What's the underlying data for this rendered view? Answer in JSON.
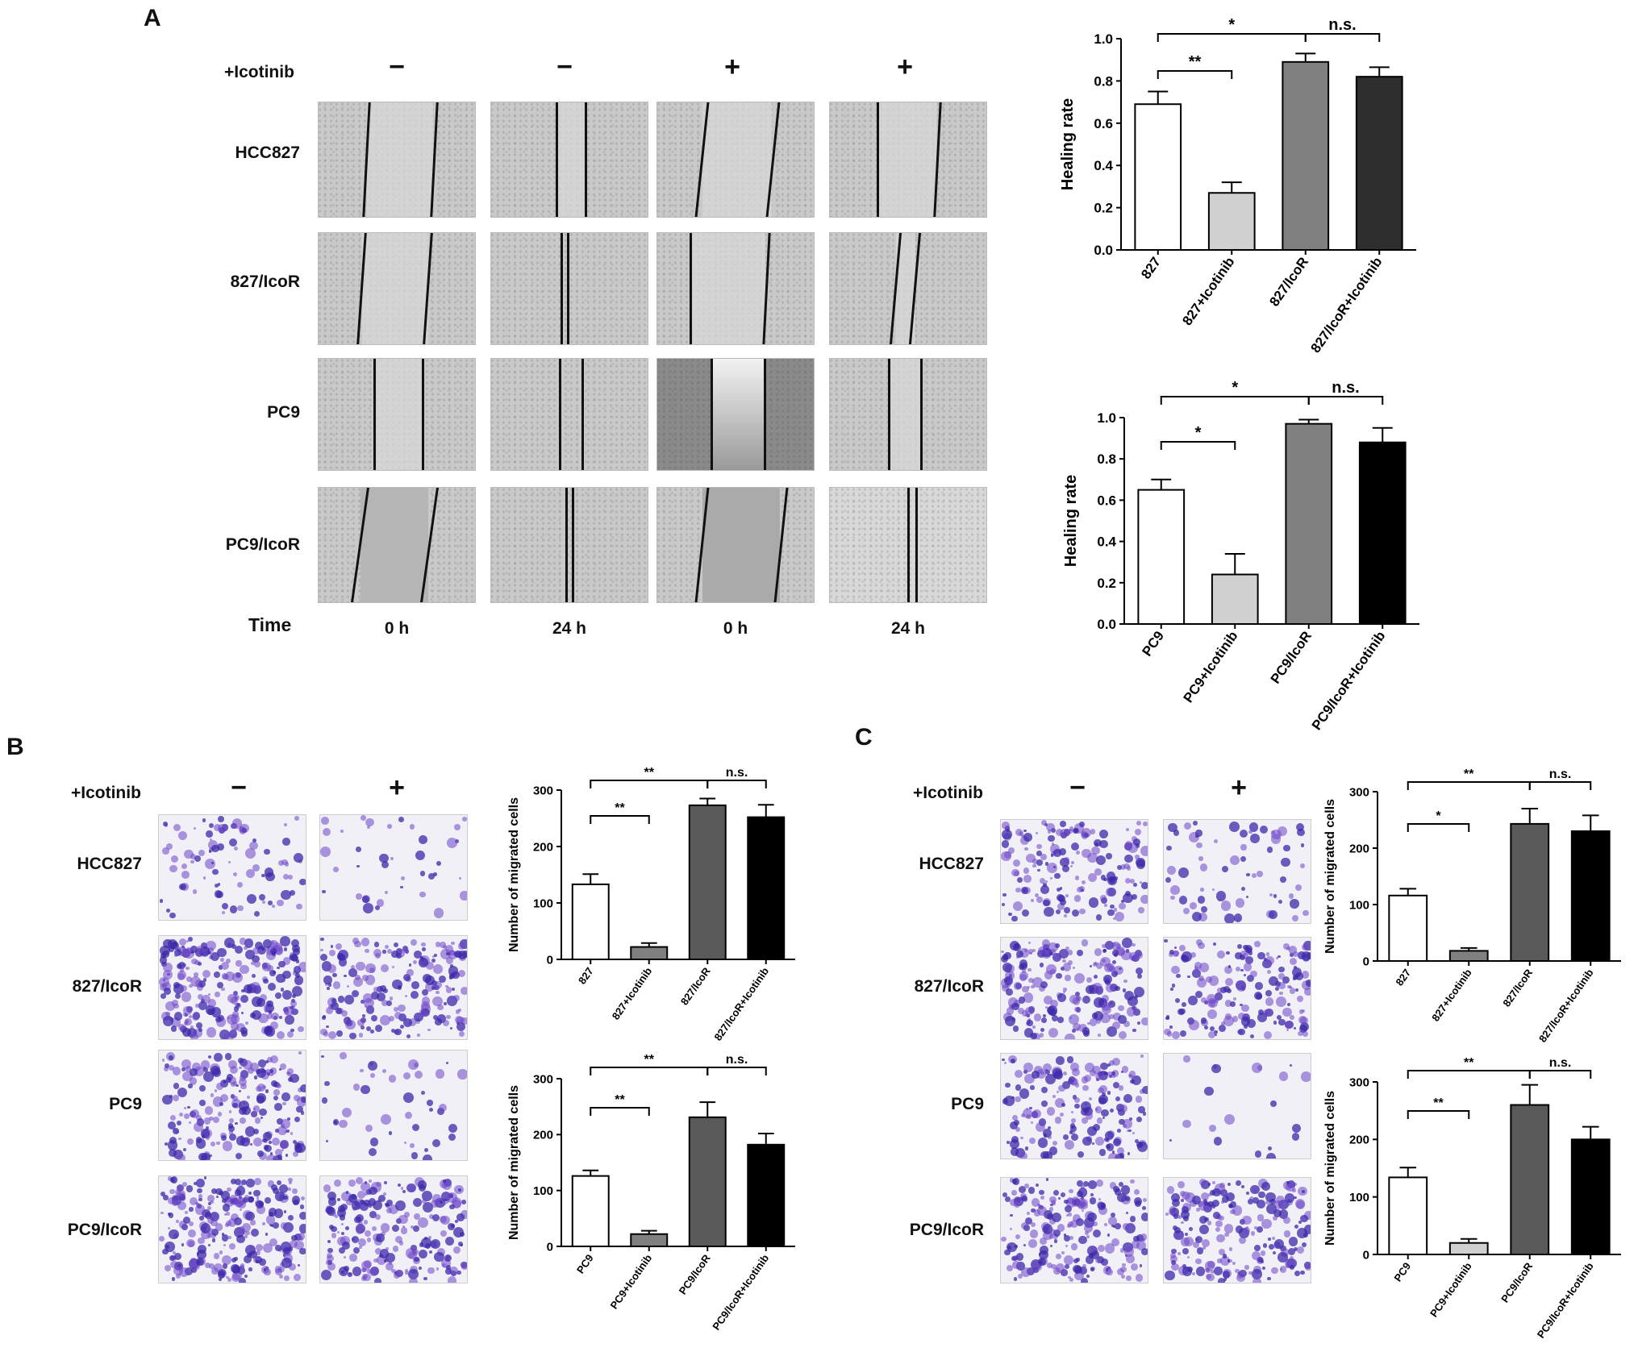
{
  "panelA": {
    "letter": "A",
    "treatment_label": "+Icotinib",
    "treatment_signs": [
      "−",
      "−",
      "+",
      "+"
    ],
    "rows": [
      "HCC827",
      "827/IcoR",
      "PC9",
      "PC9/IcoR"
    ],
    "time_label": "Time",
    "times": [
      "0 h",
      "24 h",
      "0 h",
      "24 h"
    ]
  },
  "panelB": {
    "letter": "B",
    "treatment_label": "+Icotinib",
    "treatment_signs": [
      "−",
      "+"
    ],
    "rows": [
      "HCC827",
      "827/IcoR",
      "PC9",
      "PC9/IcoR"
    ]
  },
  "panelC": {
    "letter": "C",
    "treatment_label": "+Icotinib",
    "treatment_signs": [
      "−",
      "+"
    ],
    "rows": [
      "HCC827",
      "827/IcoR",
      "PC9",
      "PC9/IcoR"
    ]
  },
  "chart_data": [
    {
      "id": "A1",
      "type": "bar",
      "ylabel": "Healing rate",
      "categories": [
        "827",
        "827+Icotinib",
        "827/IcoR",
        "827/IcoR+Icotinib"
      ],
      "values": [
        0.69,
        0.27,
        0.89,
        0.82
      ],
      "errors": [
        0.06,
        0.05,
        0.04,
        0.045
      ],
      "ylim": [
        0,
        1.0
      ],
      "yticks": [
        "0.0",
        "0.2",
        "0.4",
        "0.6",
        "0.8",
        "1.0"
      ],
      "colors": [
        "#ffffff",
        "#d0d0d0",
        "#808080",
        "#2e2e2e"
      ],
      "annotations": [
        {
          "from": 0,
          "to": 1,
          "text": "**"
        },
        {
          "from": 0,
          "to": 2,
          "text": "*"
        },
        {
          "from": 2,
          "to": 3,
          "text": "n.s."
        }
      ]
    },
    {
      "id": "A2",
      "type": "bar",
      "ylabel": "Healing rate",
      "categories": [
        "PC9",
        "PC9+Icotinib",
        "PC9/IcoR",
        "PC9/IcoR+Icotinib"
      ],
      "values": [
        0.65,
        0.24,
        0.97,
        0.88
      ],
      "errors": [
        0.05,
        0.1,
        0.02,
        0.07
      ],
      "ylim": [
        0,
        1.0
      ],
      "yticks": [
        "0.0",
        "0.2",
        "0.4",
        "0.6",
        "0.8",
        "1.0"
      ],
      "colors": [
        "#ffffff",
        "#d0d0d0",
        "#808080",
        "#000000"
      ],
      "annotations": [
        {
          "from": 0,
          "to": 1,
          "text": "*"
        },
        {
          "from": 0,
          "to": 2,
          "text": "*"
        },
        {
          "from": 2,
          "to": 3,
          "text": "n.s."
        }
      ]
    },
    {
      "id": "B1",
      "type": "bar",
      "ylabel": "Number of migrated cells",
      "categories": [
        "827",
        "827+Icotinib",
        "827/IcoR",
        "827/IcoR+Icotinib"
      ],
      "values": [
        133,
        22,
        273,
        252
      ],
      "errors": [
        18,
        7,
        12,
        22
      ],
      "ylim": [
        0,
        300
      ],
      "yticks": [
        "0",
        "100",
        "200",
        "300"
      ],
      "colors": [
        "#ffffff",
        "#808080",
        "#595959",
        "#000000"
      ],
      "annotations": [
        {
          "from": 0,
          "to": 1,
          "text": "**"
        },
        {
          "from": 0,
          "to": 2,
          "text": "**"
        },
        {
          "from": 2,
          "to": 3,
          "text": "n.s."
        }
      ]
    },
    {
      "id": "B2",
      "type": "bar",
      "ylabel": "Number of migrated cells",
      "categories": [
        "PC9",
        "PC9+Icotinib",
        "PC9/IcoR",
        "PC9/IcoR+Icotinib"
      ],
      "values": [
        126,
        22,
        231,
        182
      ],
      "errors": [
        10,
        6,
        27,
        20
      ],
      "ylim": [
        0,
        300
      ],
      "yticks": [
        "0",
        "100",
        "200",
        "300"
      ],
      "colors": [
        "#ffffff",
        "#808080",
        "#595959",
        "#000000"
      ],
      "annotations": [
        {
          "from": 0,
          "to": 1,
          "text": "**"
        },
        {
          "from": 0,
          "to": 2,
          "text": "**"
        },
        {
          "from": 2,
          "to": 3,
          "text": "n.s."
        }
      ]
    },
    {
      "id": "C1",
      "type": "bar",
      "ylabel": "Number of migrated cells",
      "categories": [
        "827",
        "827+Icotinib",
        "827/IcoR",
        "827/IcoR+Icotinib"
      ],
      "values": [
        116,
        18,
        243,
        230
      ],
      "errors": [
        12,
        5,
        27,
        28
      ],
      "ylim": [
        0,
        300
      ],
      "yticks": [
        "0",
        "100",
        "200",
        "300"
      ],
      "colors": [
        "#ffffff",
        "#808080",
        "#595959",
        "#000000"
      ],
      "annotations": [
        {
          "from": 0,
          "to": 1,
          "text": "*"
        },
        {
          "from": 0,
          "to": 2,
          "text": "**"
        },
        {
          "from": 2,
          "to": 3,
          "text": "n.s."
        }
      ]
    },
    {
      "id": "C2",
      "type": "bar",
      "ylabel": "Number of migrated cells",
      "categories": [
        "PC9",
        "PC9+Icotinib",
        "PC9/IcoR",
        "PC9/IcoR+Icotinib"
      ],
      "values": [
        134,
        20,
        260,
        200
      ],
      "errors": [
        17,
        7,
        35,
        22
      ],
      "ylim": [
        0,
        300
      ],
      "yticks": [
        "0",
        "100",
        "200",
        "300"
      ],
      "colors": [
        "#ffffff",
        "#d0d0d0",
        "#595959",
        "#000000"
      ],
      "annotations": [
        {
          "from": 0,
          "to": 1,
          "text": "**"
        },
        {
          "from": 0,
          "to": 2,
          "text": "**"
        },
        {
          "from": 2,
          "to": 3,
          "text": "n.s."
        }
      ]
    }
  ]
}
